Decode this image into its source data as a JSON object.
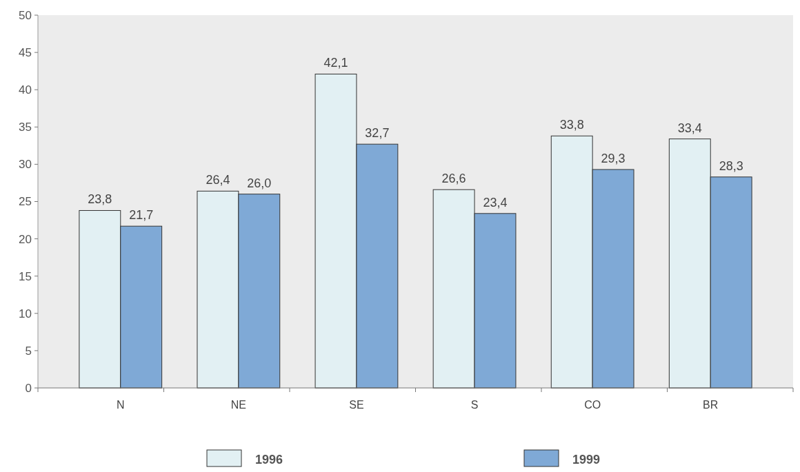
{
  "chart_data": {
    "type": "bar",
    "categories": [
      "N",
      "NE",
      "SE",
      "S",
      "CO",
      "BR"
    ],
    "series": [
      {
        "name": "1996",
        "color": "#e2f0f3",
        "values": [
          23.8,
          26.4,
          42.1,
          26.6,
          33.8,
          33.4
        ],
        "value_labels": [
          "23,8",
          "26,4",
          "42,1",
          "26,6",
          "33,8",
          "33,4"
        ]
      },
      {
        "name": "1999",
        "color": "#7fa9d6",
        "values": [
          21.7,
          26.0,
          32.7,
          23.4,
          29.3,
          28.3
        ],
        "value_labels": [
          "21,7",
          "26,0",
          "32,7",
          "23,4",
          "29,3",
          "28,3"
        ]
      }
    ],
    "ylim": [
      0,
      50
    ],
    "yticks": [
      0,
      5,
      10,
      15,
      20,
      25,
      30,
      35,
      40,
      45,
      50
    ],
    "grid": false,
    "legend": "bottom"
  }
}
